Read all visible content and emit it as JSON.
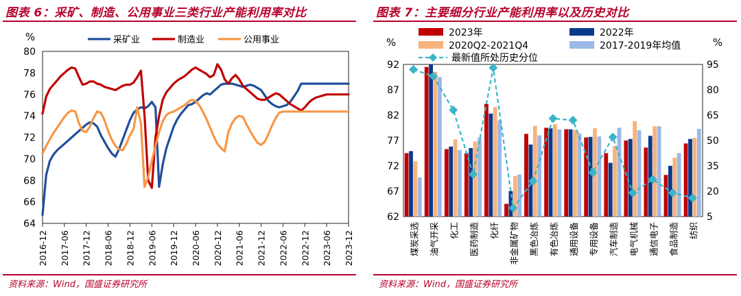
{
  "left": {
    "title": "图表 6：采矿、制造、公用事业三类行业产能利用率对比",
    "source": "资料来源：Wind，国盛证券研究所"
  },
  "right": {
    "title": "图表 7：主要细分行业产能利用率以及历史对比",
    "source": "资料来源：Wind，国盛证券研究所"
  },
  "colors": {
    "red": "#c00000",
    "navy": "#0b3a8c",
    "peach": "#f7b37d",
    "lightblue": "#9ab9e6",
    "teal": "#3cb4c8",
    "mining": "#1f4e9c",
    "manufacturing": "#c00000",
    "utilities": "#f79646"
  },
  "chart_data": [
    {
      "type": "line",
      "ylabel": "%",
      "ylim": [
        64,
        80
      ],
      "yticks": [
        64,
        66,
        68,
        70,
        72,
        74,
        76,
        78,
        80
      ],
      "x_ticks": [
        "2016-12",
        "2017-06",
        "2017-12",
        "2018-06",
        "2018-12",
        "2019-06",
        "2019-12",
        "2020-06",
        "2020-12",
        "2021-06",
        "2021-12",
        "2022-06",
        "2022-12",
        "2023-06",
        "2023-12"
      ],
      "x": [
        "2016-12",
        "2017-01",
        "2017-02",
        "2017-03",
        "2017-04",
        "2017-05",
        "2017-06",
        "2017-07",
        "2017-08",
        "2017-09",
        "2017-10",
        "2017-11",
        "2017-12",
        "2018-01",
        "2018-02",
        "2018-03",
        "2018-04",
        "2018-05",
        "2018-06",
        "2018-07",
        "2018-08",
        "2018-09",
        "2018-10",
        "2018-11",
        "2018-12",
        "2019-01",
        "2019-02",
        "2019-03",
        "2019-04",
        "2019-05",
        "2019-06",
        "2019-07",
        "2019-08",
        "2019-09",
        "2019-10",
        "2019-11",
        "2019-12",
        "2020-01",
        "2020-02",
        "2020-03",
        "2020-04",
        "2020-05",
        "2020-06",
        "2020-07",
        "2020-08",
        "2020-09",
        "2020-10",
        "2020-11",
        "2020-12",
        "2021-01",
        "2021-02",
        "2021-03",
        "2021-04",
        "2021-05",
        "2021-06",
        "2021-07",
        "2021-08",
        "2021-09",
        "2021-10",
        "2021-11",
        "2021-12",
        "2022-01",
        "2022-02",
        "2022-03",
        "2022-04",
        "2022-05",
        "2022-06",
        "2022-07",
        "2022-08",
        "2022-09",
        "2022-10",
        "2022-11",
        "2022-12",
        "2023-01",
        "2023-02",
        "2023-03",
        "2023-04",
        "2023-05",
        "2023-06",
        "2023-07",
        "2023-08",
        "2023-09",
        "2023-10",
        "2023-11",
        "2023-12"
      ],
      "legend_position": "top",
      "series": [
        {
          "name": "采矿业",
          "values": [
            64.8,
            68.5,
            69.8,
            70.4,
            70.8,
            71.1,
            71.4,
            71.7,
            72.0,
            72.3,
            72.6,
            72.9,
            73.2,
            73.4,
            73.3,
            73.0,
            72.2,
            71.6,
            71.0,
            70.5,
            70.2,
            70.9,
            71.8,
            72.7,
            73.6,
            74.3,
            74.6,
            74.8,
            74.7,
            74.9,
            75.3,
            74.8,
            67.4,
            69.5,
            71.0,
            72.0,
            73.0,
            73.7,
            74.2,
            74.6,
            75.0,
            75.1,
            75.3,
            75.6,
            75.9,
            76.1,
            76.0,
            76.3,
            76.6,
            76.9,
            77.0,
            77.0,
            77.0,
            76.9,
            76.8,
            76.7,
            76.8,
            76.9,
            76.8,
            76.6,
            76.4,
            75.9,
            75.4,
            75.1,
            74.9,
            74.8,
            74.9,
            75.0,
            75.3,
            75.8,
            76.3,
            77.0,
            77.0,
            77.0,
            77.0,
            77.0,
            77.0,
            77.0,
            77.0,
            77.0,
            77.0,
            77.0,
            77.0,
            77.0,
            77.0
          ]
        },
        {
          "name": "制造业",
          "values": [
            74.2,
            75.8,
            76.5,
            76.9,
            77.3,
            77.7,
            78.0,
            78.3,
            78.5,
            78.4,
            77.6,
            76.9,
            77.0,
            77.2,
            77.2,
            77.0,
            76.9,
            76.7,
            76.6,
            76.5,
            76.4,
            76.6,
            76.8,
            76.9,
            76.9,
            77.1,
            77.6,
            78.2,
            74.0,
            68.0,
            67.3,
            72.0,
            74.0,
            75.5,
            76.2,
            76.6,
            77.0,
            77.3,
            77.5,
            77.7,
            78.0,
            78.3,
            78.5,
            78.3,
            78.1,
            77.9,
            77.6,
            77.8,
            78.8,
            78.3,
            77.4,
            77.0,
            77.5,
            77.8,
            77.4,
            76.8,
            76.5,
            76.2,
            75.9,
            75.6,
            75.5,
            75.5,
            75.7,
            75.9,
            76.1,
            76.0,
            75.7,
            75.4,
            75.1,
            74.9,
            74.7,
            74.5,
            74.8,
            75.2,
            75.5,
            75.7,
            75.8,
            75.9,
            76.0,
            76.0,
            76.0,
            76.0,
            76.0,
            76.0,
            76.0
          ]
        },
        {
          "name": "公用事业",
          "values": [
            70.5,
            71.2,
            71.8,
            72.4,
            72.9,
            73.4,
            73.9,
            74.3,
            74.5,
            74.4,
            73.3,
            72.6,
            72.5,
            73.0,
            73.8,
            74.4,
            74.3,
            73.6,
            72.6,
            71.8,
            71.2,
            70.9,
            70.8,
            71.4,
            72.2,
            72.8,
            74.8,
            73.3,
            67.4,
            68.3,
            69.8,
            71.2,
            72.5,
            73.5,
            74.1,
            74.3,
            74.4,
            74.6,
            74.8,
            75.0,
            75.3,
            75.5,
            75.4,
            75.0,
            74.4,
            73.7,
            72.9,
            72.1,
            71.4,
            71.0,
            70.7,
            72.5,
            73.3,
            73.8,
            74.0,
            73.9,
            73.2,
            72.6,
            72.0,
            71.5,
            71.3,
            71.6,
            72.3,
            73.1,
            73.8,
            74.3,
            74.4,
            74.4,
            74.4,
            74.4,
            74.4,
            74.4,
            74.4,
            74.4,
            74.4,
            74.4,
            74.4,
            74.4,
            74.4,
            74.4,
            74.4,
            74.4,
            74.4,
            74.4,
            74.4
          ]
        }
      ]
    },
    {
      "type": "bar",
      "ylabel": "%",
      "ylim": [
        62,
        92
      ],
      "yticks": [
        62,
        67,
        72,
        77,
        82,
        87,
        92
      ],
      "y2label": "%",
      "y2lim": [
        5,
        95
      ],
      "y2ticks": [
        5,
        20,
        35,
        50,
        65,
        80,
        95
      ],
      "legend_position": "top",
      "categories": [
        "煤炭采选",
        "油气开采",
        "化工",
        "医药制造",
        "化纤",
        "非金属矿物",
        "黑色冶炼",
        "有色冶炼",
        "通用设备",
        "专用设备",
        "汽车制造",
        "电气机械",
        "通信电子",
        "食品制造",
        "纺织"
      ],
      "series": [
        {
          "name": "2023年",
          "values": [
            74.5,
            91.5,
            75.3,
            74.5,
            84.2,
            64.5,
            78.3,
            79.5,
            79.2,
            77.6,
            74.5,
            77.0,
            75.6,
            70.2,
            76.4
          ]
        },
        {
          "name": "2022年",
          "values": [
            74.9,
            92.0,
            75.8,
            75.5,
            82.3,
            67.0,
            76.2,
            79.4,
            79.2,
            77.7,
            72.6,
            77.3,
            77.9,
            72.0,
            77.3
          ]
        },
        {
          "name": "2020Q2-2021Q4",
          "values": [
            72.9,
            90.5,
            77.2,
            76.8,
            83.6,
            70.0,
            79.9,
            80.2,
            79.1,
            79.4,
            75.9,
            80.8,
            79.8,
            73.6,
            77.5
          ]
        },
        {
          "name": "2017-2019年均值",
          "values": [
            69.7,
            89.5,
            75.1,
            77.6,
            81.0,
            70.3,
            78.0,
            79.2,
            78.4,
            77.8,
            79.5,
            79.0,
            79.8,
            74.5,
            79.3
          ]
        },
        {
          "name": "最新值所处历史分位",
          "axis": "right",
          "chart": "line",
          "values": [
            92.0,
            88.0,
            68.0,
            30.0,
            93.0,
            10.0,
            26.0,
            63.0,
            62.0,
            31.0,
            52.0,
            19.0,
            27.0,
            19.0,
            16.0
          ]
        }
      ]
    }
  ]
}
